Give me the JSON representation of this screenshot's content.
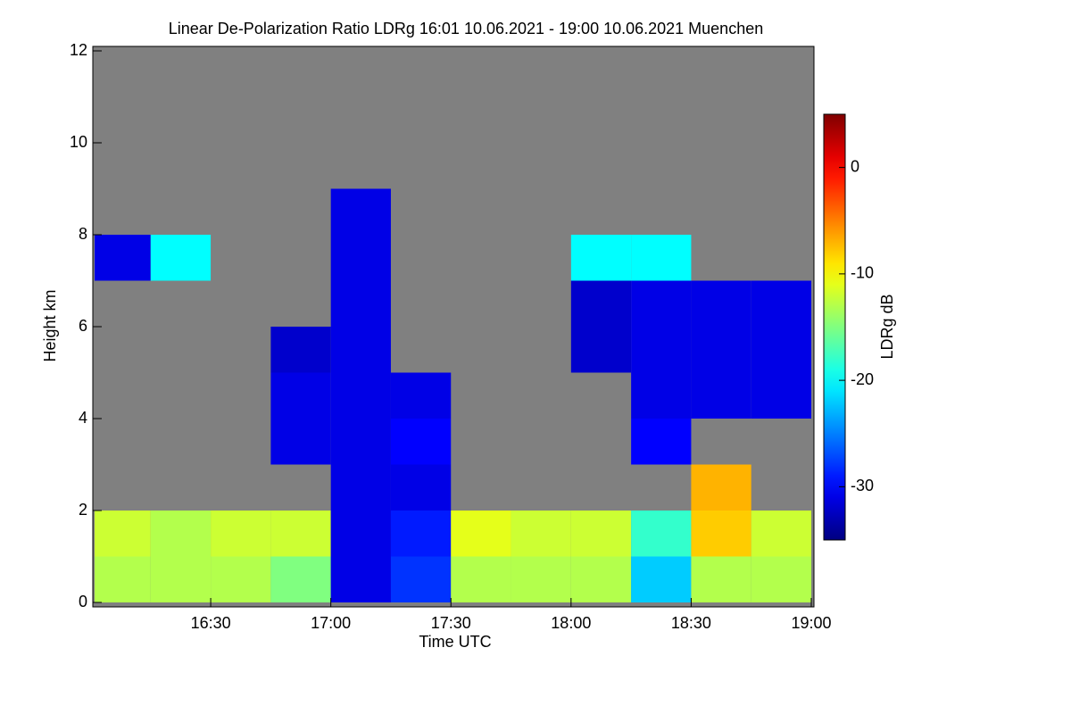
{
  "chart_data": {
    "type": "heatmap",
    "title": "Linear De-Polarization Ratio LDRg   16:01 10.06.2021 - 19:00 10.06.2021 Muenchen",
    "x_label": "Time UTC",
    "y_label": "Height km",
    "colorbar_label": "LDRg dB",
    "x": [
      16.0167,
      16.25,
      16.5,
      16.75,
      17.0,
      17.25,
      17.5,
      17.75,
      18.0,
      18.25,
      18.5,
      18.75,
      19.0
    ],
    "y": [
      0,
      1,
      2,
      3,
      4,
      5,
      6,
      7,
      8,
      9
    ],
    "values": [
      [
        -13,
        -13,
        -13,
        -15,
        -31,
        -28,
        -13,
        -13,
        -13,
        -22,
        -13,
        -13
      ],
      [
        -12,
        -13,
        -12,
        -12,
        -31,
        -29,
        -11,
        -12,
        -12,
        -18,
        -8,
        -12
      ],
      [
        null,
        null,
        null,
        null,
        -31,
        -31,
        null,
        null,
        null,
        null,
        -7,
        null
      ],
      [
        null,
        null,
        null,
        -31,
        -31,
        -30,
        null,
        null,
        null,
        -30,
        null,
        null
      ],
      [
        null,
        null,
        null,
        -31,
        -31,
        -31,
        null,
        null,
        null,
        -31,
        -31,
        -31
      ],
      [
        null,
        null,
        null,
        -32,
        -31,
        null,
        null,
        null,
        -32,
        -31,
        -31,
        -31
      ],
      [
        null,
        null,
        null,
        null,
        -31,
        null,
        null,
        null,
        -32,
        -31,
        -31,
        -31
      ],
      [
        -31,
        -20,
        null,
        null,
        -31,
        null,
        null,
        null,
        -20,
        -20,
        null,
        null
      ],
      [
        null,
        null,
        null,
        null,
        -31,
        null,
        null,
        null,
        null,
        null,
        null,
        null
      ]
    ],
    "no_data_color": "#808080",
    "xlim": [
      16.0167,
      19.0
    ],
    "xticks": [
      {
        "value": 16.5,
        "label": "16:30"
      },
      {
        "value": 17.0,
        "label": "17:00"
      },
      {
        "value": 17.5,
        "label": "17:30"
      },
      {
        "value": 18.0,
        "label": "18:00"
      },
      {
        "value": 18.5,
        "label": "18:30"
      },
      {
        "value": 19.0,
        "label": "19:00"
      }
    ],
    "ylim": [
      0,
      12
    ],
    "yticks": [
      0,
      2,
      4,
      6,
      8,
      10,
      12
    ],
    "clim": [
      -35,
      5
    ],
    "cticks": [
      0,
      -10,
      -20,
      -30
    ],
    "colormap": "jet"
  }
}
